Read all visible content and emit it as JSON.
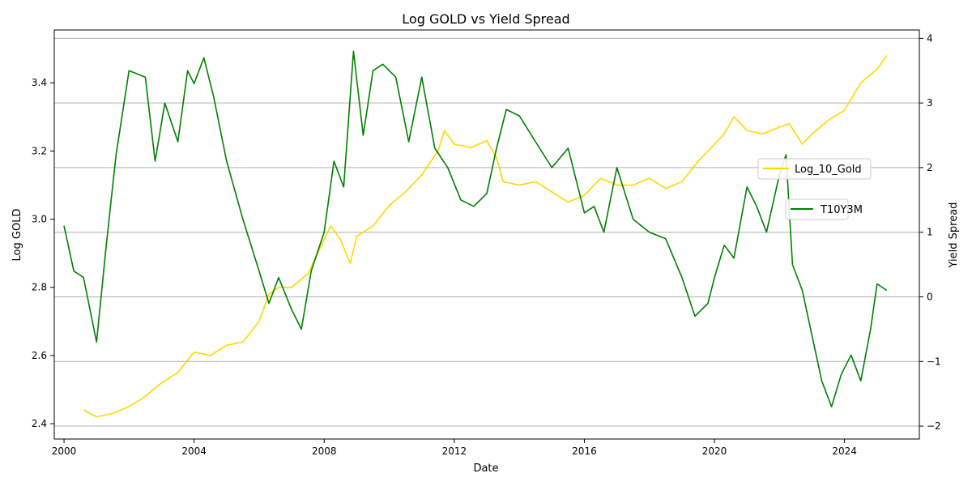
{
  "chart_data": {
    "type": "line",
    "title": "Log GOLD vs Yield Spread",
    "xlabel": "Date",
    "ylabel_left": "Log GOLD",
    "ylabel_right": "Yield Spread",
    "xlim": [
      1999.7,
      2026.3
    ],
    "ylim_left": [
      2.355,
      3.555
    ],
    "ylim_right": [
      -2.2,
      4.13
    ],
    "x_ticks": [
      2000,
      2004,
      2008,
      2012,
      2016,
      2020,
      2024
    ],
    "x_tick_labels": [
      "2000",
      "2004",
      "2008",
      "2012",
      "2016",
      "2020",
      "2024"
    ],
    "y_left_ticks": [
      2.4,
      2.6,
      2.8,
      3.0,
      3.2,
      3.4
    ],
    "y_left_tick_labels": [
      "2.4",
      "2.6",
      "2.8",
      "3.0",
      "3.2",
      "3.4"
    ],
    "y_right_ticks": [
      -2,
      -1,
      0,
      1,
      2,
      3,
      4
    ],
    "y_right_tick_labels": [
      "−2",
      "−1",
      "0",
      "1",
      "2",
      "3",
      "4"
    ],
    "grid": "horizontal lines at right-axis ticks",
    "series": [
      {
        "name": "Log_10_Gold",
        "axis": "left",
        "color": "#FFD700",
        "x": [
          2000.6,
          2001.0,
          2001.5,
          2002.0,
          2002.5,
          2003.0,
          2003.5,
          2004.0,
          2004.5,
          2005.0,
          2005.5,
          2006.0,
          2006.3,
          2006.6,
          2007.0,
          2007.5,
          2008.0,
          2008.2,
          2008.5,
          2008.8,
          2009.0,
          2009.5,
          2010.0,
          2010.5,
          2011.0,
          2011.5,
          2011.7,
          2012.0,
          2012.5,
          2013.0,
          2013.3,
          2013.5,
          2014.0,
          2014.5,
          2015.0,
          2015.5,
          2016.0,
          2016.5,
          2017.0,
          2017.5,
          2018.0,
          2018.5,
          2019.0,
          2019.5,
          2020.0,
          2020.3,
          2020.6,
          2021.0,
          2021.5,
          2022.0,
          2022.3,
          2022.7,
          2023.0,
          2023.5,
          2024.0,
          2024.5,
          2025.0,
          2025.3
        ],
        "values": [
          2.44,
          2.42,
          2.43,
          2.45,
          2.48,
          2.52,
          2.55,
          2.61,
          2.6,
          2.63,
          2.64,
          2.7,
          2.78,
          2.8,
          2.8,
          2.84,
          2.94,
          2.98,
          2.94,
          2.87,
          2.95,
          2.98,
          3.04,
          3.08,
          3.13,
          3.2,
          3.26,
          3.22,
          3.21,
          3.23,
          3.18,
          3.11,
          3.1,
          3.11,
          3.08,
          3.05,
          3.07,
          3.12,
          3.1,
          3.1,
          3.12,
          3.09,
          3.11,
          3.17,
          3.22,
          3.25,
          3.3,
          3.26,
          3.25,
          3.27,
          3.28,
          3.22,
          3.25,
          3.29,
          3.32,
          3.4,
          3.44,
          3.48
        ]
      },
      {
        "name": "T10Y3M",
        "axis": "right",
        "color": "#008000",
        "x": [
          2000.0,
          2000.3,
          2000.6,
          2001.0,
          2001.3,
          2001.6,
          2002.0,
          2002.5,
          2002.8,
          2003.1,
          2003.5,
          2003.8,
          2004.0,
          2004.3,
          2004.6,
          2005.0,
          2005.5,
          2006.0,
          2006.3,
          2006.6,
          2007.0,
          2007.3,
          2007.6,
          2008.0,
          2008.3,
          2008.6,
          2008.9,
          2009.2,
          2009.5,
          2009.8,
          2010.2,
          2010.6,
          2011.0,
          2011.4,
          2011.8,
          2012.2,
          2012.6,
          2013.0,
          2013.3,
          2013.6,
          2014.0,
          2014.5,
          2015.0,
          2015.5,
          2016.0,
          2016.3,
          2016.6,
          2017.0,
          2017.5,
          2018.0,
          2018.5,
          2019.0,
          2019.4,
          2019.8,
          2020.0,
          2020.3,
          2020.6,
          2021.0,
          2021.3,
          2021.6,
          2022.0,
          2022.2,
          2022.4,
          2022.7,
          2023.0,
          2023.3,
          2023.6,
          2023.9,
          2024.2,
          2024.5,
          2024.8,
          2025.0,
          2025.3
        ],
        "values": [
          1.1,
          0.4,
          0.3,
          -0.7,
          0.8,
          2.2,
          3.5,
          3.4,
          2.1,
          3.0,
          2.4,
          3.5,
          3.3,
          3.7,
          3.1,
          2.1,
          1.2,
          0.4,
          -0.1,
          0.3,
          -0.2,
          -0.5,
          0.4,
          1.0,
          2.1,
          1.7,
          3.8,
          2.5,
          3.5,
          3.6,
          3.4,
          2.4,
          3.4,
          2.3,
          2.0,
          1.5,
          1.4,
          1.6,
          2.3,
          2.9,
          2.8,
          2.4,
          2.0,
          2.3,
          1.3,
          1.4,
          1.0,
          2.0,
          1.2,
          1.0,
          0.9,
          0.3,
          -0.3,
          -0.1,
          0.3,
          0.8,
          0.6,
          1.7,
          1.4,
          1.0,
          1.9,
          2.2,
          0.5,
          0.1,
          -0.6,
          -1.3,
          -1.7,
          -1.2,
          -0.9,
          -1.3,
          -0.5,
          0.2,
          0.1
        ]
      }
    ],
    "legend": [
      {
        "label": "Log_10_Gold",
        "placement": "right, upper-middle"
      },
      {
        "label": "T10Y3M",
        "placement": "right, middle"
      }
    ]
  }
}
